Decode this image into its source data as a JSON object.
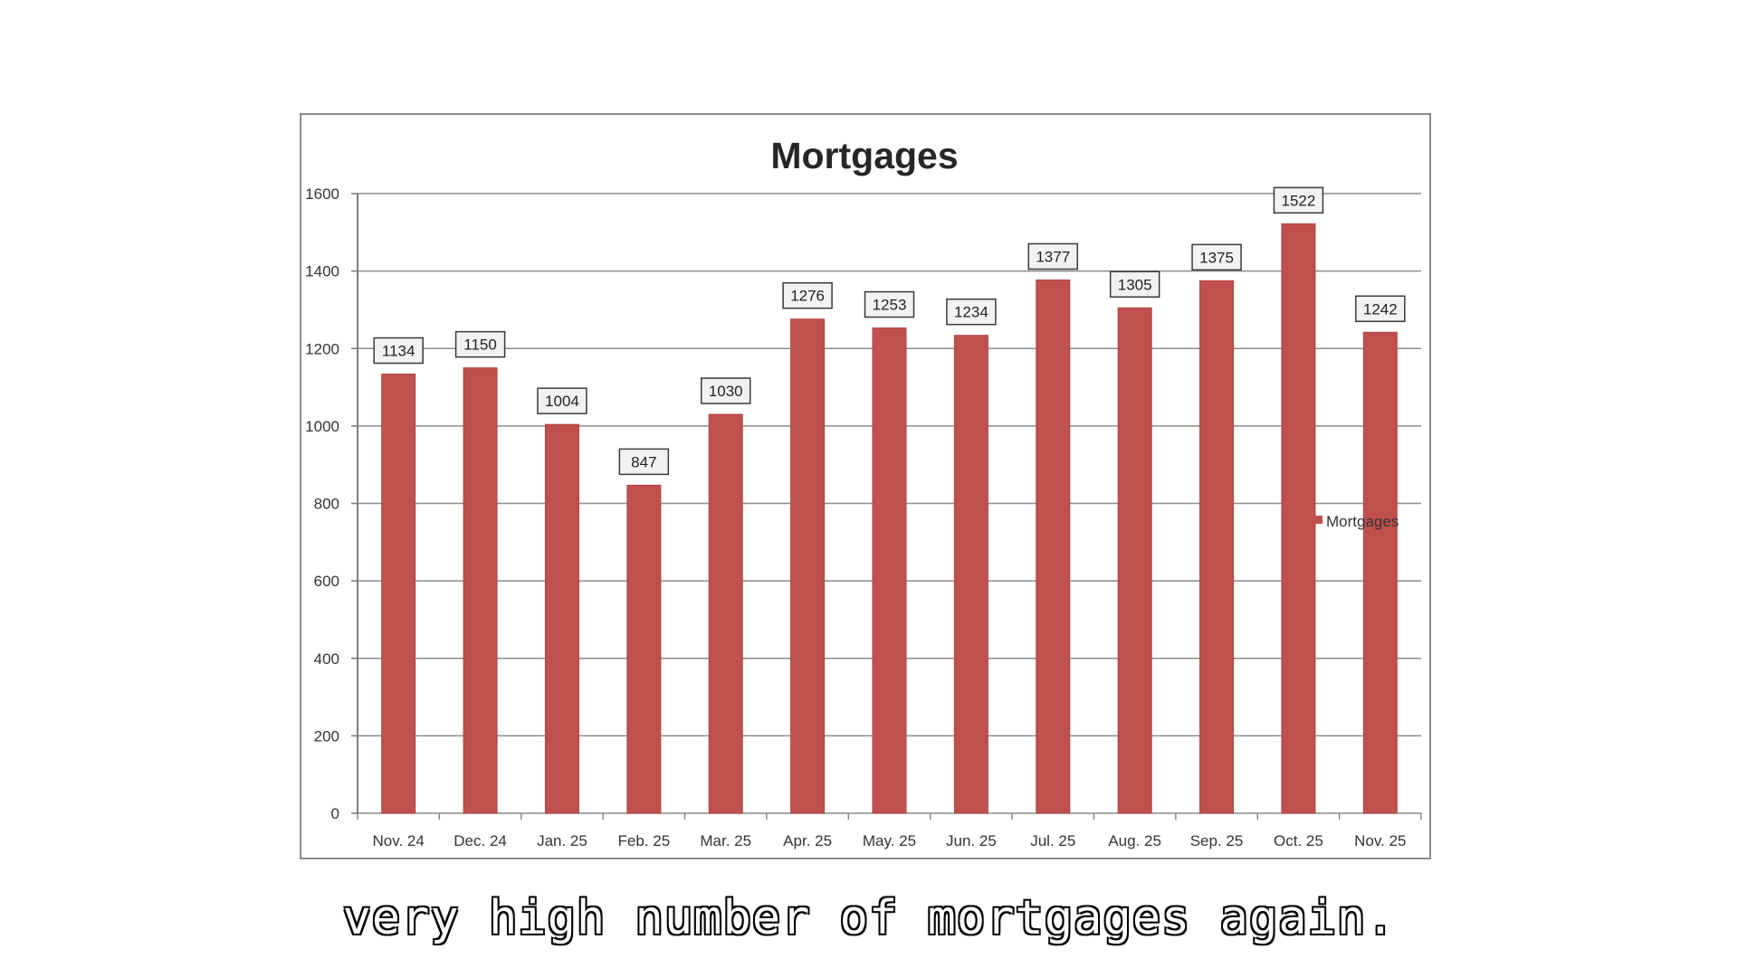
{
  "caption": {
    "text": "very high number of mortgages again."
  },
  "chart_data": {
    "type": "bar",
    "title": "Mortgages",
    "xlabel": "",
    "ylabel": "",
    "categories": [
      "Nov. 24",
      "Dec. 24",
      "Jan. 25",
      "Feb. 25",
      "Mar. 25",
      "Apr. 25",
      "May. 25",
      "Jun. 25",
      "Jul. 25",
      "Aug. 25",
      "Sep. 25",
      "Oct. 25",
      "Nov. 25"
    ],
    "series": [
      {
        "name": "Mortgages",
        "values": [
          1134,
          1150,
          1004,
          847,
          1030,
          1276,
          1253,
          1234,
          1377,
          1305,
          1375,
          1522,
          1242
        ],
        "color": "#c0504d"
      }
    ],
    "ylim": [
      0,
      1600
    ],
    "yticks": [
      0,
      200,
      400,
      600,
      800,
      1000,
      1200,
      1400,
      1600
    ],
    "grid": true,
    "legend": "right",
    "data_labels": true
  }
}
